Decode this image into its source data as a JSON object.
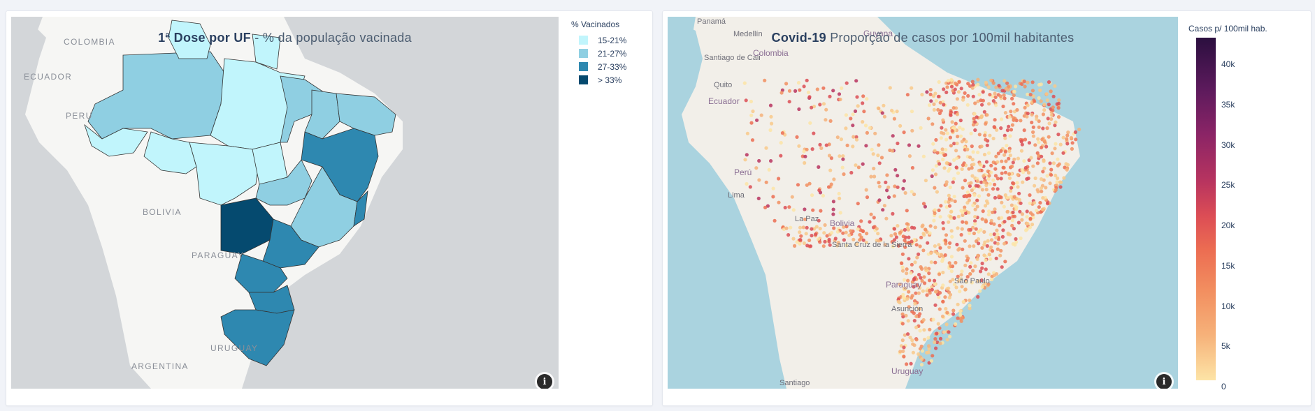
{
  "left_map": {
    "title_bold": "1ª Dose por UF",
    "title_rest": " - % da população vacinada",
    "country_labels": [
      "COLOMBIA",
      "ECUADOR",
      "PERU",
      "BOLIVIA",
      "PARAGUAY",
      "URUGUAY",
      "ARGENTINA"
    ],
    "legend": {
      "title": "% Vacinados",
      "items": [
        {
          "label": "15-21%",
          "color": "#c1f5fc"
        },
        {
          "label": "21-27%",
          "color": "#8fcfe2"
        },
        {
          "label": "27-33%",
          "color": "#2e88b0"
        },
        {
          "label": "> 33%",
          "color": "#054a6f"
        }
      ]
    },
    "info_icon": "i"
  },
  "right_map": {
    "title_bold": "Covid-19",
    "title_rest": " Proporção de casos por 100mil habitantes",
    "place_labels": [
      "Panamá",
      "Medellín",
      "Santiago de Cali",
      "Colombia",
      "Quito",
      "Ecuador",
      "Guyana",
      "Perú",
      "Lima",
      "La Paz",
      "Bolivia",
      "Santa Cruz de la Sierra",
      "Paraguay",
      "Asunción",
      "São Paulo",
      "Uruguay",
      "Santiago"
    ],
    "colorbar": {
      "title": "Casos p/ 100mil hab.",
      "ticks": [
        "40k",
        "35k",
        "30k",
        "25k",
        "20k",
        "15k",
        "10k",
        "5k",
        "0"
      ],
      "min": 0,
      "max": 43000
    },
    "info_icon": "i"
  }
}
